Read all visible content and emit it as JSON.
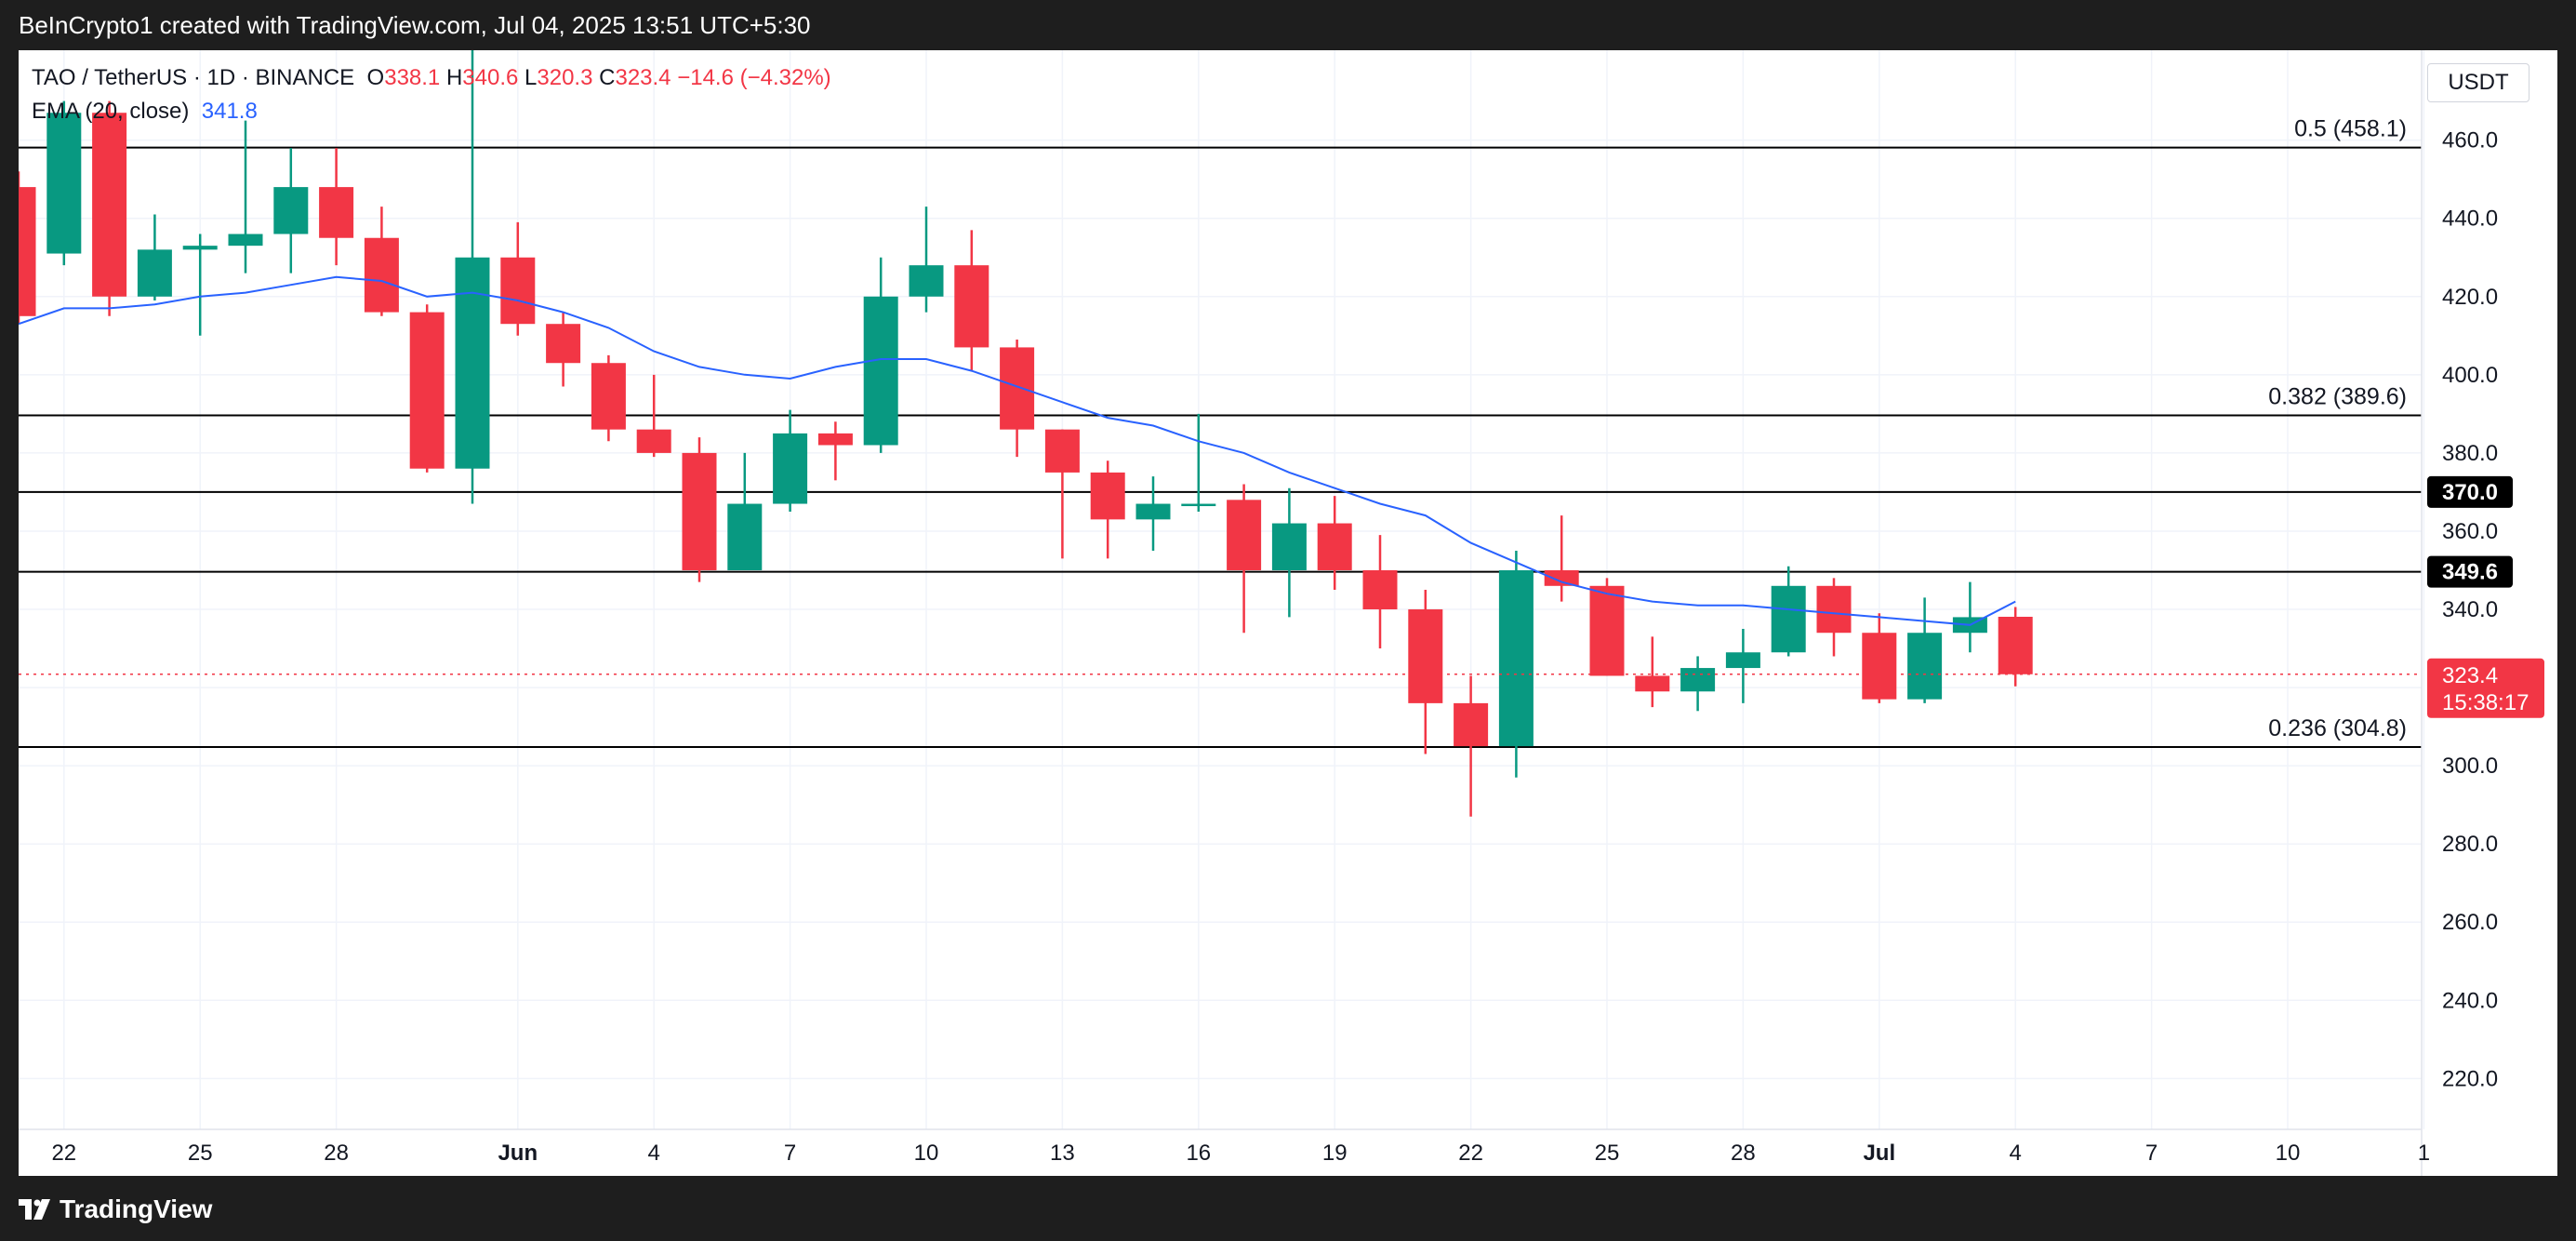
{
  "header": {
    "caption": "BeInCrypto1 created with TradingView.com, Jul 04, 2025 13:51 UTC+5:30"
  },
  "legend": {
    "symbol": "TAO / TetherUS · 1D · BINANCE",
    "o_label": "O",
    "o_value": "338.1",
    "h_label": "H",
    "h_value": "340.6",
    "l_label": "L",
    "l_value": "320.3",
    "c_label": "C",
    "c_value": "323.4",
    "change": "−14.6 (−4.32%)",
    "ema_label": "EMA (20, close)",
    "ema_value": "341.8"
  },
  "currency": "USDT",
  "footer": {
    "brand": "TradingView"
  },
  "colors": {
    "up": "#089981",
    "down": "#f23645",
    "ema": "#2962ff",
    "price_tag": "#f23645",
    "level_tag": "#000000"
  },
  "chart_data": {
    "type": "candlestick",
    "title": "TAO / TetherUS · 1D · BINANCE",
    "ylim": [
      207,
      483
    ],
    "y_ticks": [
      220,
      240,
      260,
      280,
      300,
      320,
      340,
      360,
      380,
      400,
      420,
      440,
      460
    ],
    "y_tick_labels": [
      "220.0",
      "240.0",
      "260.0",
      "280.0",
      "300.0",
      "320.0",
      "340.0",
      "360.0",
      "380.0",
      "400.0",
      "420.0",
      "440.0",
      "460.0"
    ],
    "x_ticks": [
      {
        "idx": 1,
        "label": "22",
        "bold": false
      },
      {
        "idx": 4,
        "label": "25",
        "bold": false
      },
      {
        "idx": 7,
        "label": "28",
        "bold": false
      },
      {
        "idx": 11,
        "label": "Jun",
        "bold": true
      },
      {
        "idx": 14,
        "label": "4",
        "bold": false
      },
      {
        "idx": 17,
        "label": "7",
        "bold": false
      },
      {
        "idx": 20,
        "label": "10",
        "bold": false
      },
      {
        "idx": 23,
        "label": "13",
        "bold": false
      },
      {
        "idx": 26,
        "label": "16",
        "bold": false
      },
      {
        "idx": 29,
        "label": "19",
        "bold": false
      },
      {
        "idx": 32,
        "label": "22",
        "bold": false
      },
      {
        "idx": 35,
        "label": "25",
        "bold": false
      },
      {
        "idx": 38,
        "label": "28",
        "bold": false
      },
      {
        "idx": 41,
        "label": "Jul",
        "bold": true
      },
      {
        "idx": 44,
        "label": "4",
        "bold": false
      },
      {
        "idx": 47,
        "label": "7",
        "bold": false
      },
      {
        "idx": 50,
        "label": "10",
        "bold": false
      },
      {
        "idx": 53,
        "label": "1",
        "bold": false
      }
    ],
    "candles": [
      [
        448,
        452,
        413,
        415
      ],
      [
        431,
        470,
        428,
        467
      ],
      [
        467,
        470,
        415,
        420
      ],
      [
        420,
        441,
        419,
        432
      ],
      [
        432,
        436,
        410,
        433
      ],
      [
        433,
        465,
        426,
        436
      ],
      [
        436,
        458,
        426,
        448
      ],
      [
        448,
        458,
        428,
        435
      ],
      [
        435,
        443,
        415,
        416
      ],
      [
        416,
        418,
        375,
        376
      ],
      [
        376,
        498,
        367,
        430
      ],
      [
        430,
        439,
        410,
        413
      ],
      [
        413,
        416,
        397,
        403
      ],
      [
        403,
        405,
        383,
        386
      ],
      [
        386,
        400,
        379,
        380
      ],
      [
        380,
        384,
        347,
        350
      ],
      [
        350,
        380,
        350,
        367
      ],
      [
        367,
        391,
        365,
        385
      ],
      [
        385,
        388,
        373,
        382
      ],
      [
        382,
        430,
        380,
        420
      ],
      [
        420,
        443,
        416,
        428
      ],
      [
        428,
        437,
        401,
        407
      ],
      [
        407,
        409,
        379,
        386
      ],
      [
        386,
        386,
        353,
        375
      ],
      [
        375,
        378,
        353,
        363
      ],
      [
        363,
        374,
        355,
        367
      ],
      [
        367,
        390,
        365,
        367
      ],
      [
        368,
        372,
        334,
        350
      ],
      [
        350,
        371,
        338,
        362
      ],
      [
        362,
        369,
        345,
        350
      ],
      [
        350,
        359,
        330,
        340
      ],
      [
        340,
        345,
        303,
        316
      ],
      [
        316,
        323,
        287,
        305
      ],
      [
        305,
        355,
        297,
        350
      ],
      [
        350,
        364,
        342,
        346
      ],
      [
        346,
        348,
        323,
        323
      ],
      [
        323,
        333,
        315,
        319
      ],
      [
        319,
        328,
        314,
        325
      ],
      [
        325,
        335,
        316,
        329
      ],
      [
        329,
        351,
        328,
        346
      ],
      [
        346,
        348,
        328,
        334
      ],
      [
        334,
        339,
        316,
        317
      ],
      [
        317,
        343,
        316,
        334
      ],
      [
        334,
        347,
        329,
        338
      ],
      [
        338.1,
        340.6,
        320.3,
        323.4
      ]
    ],
    "ema": {
      "name": "EMA (20, close)",
      "values": [
        413,
        417,
        417,
        418,
        420,
        421,
        423,
        425,
        424,
        420,
        421,
        419,
        416,
        412,
        406,
        402,
        400,
        399,
        402,
        404,
        404,
        401,
        397,
        393,
        389,
        387,
        383,
        380,
        375,
        371,
        367,
        364,
        357,
        352,
        347,
        344,
        342,
        341,
        341,
        340,
        339,
        338,
        337,
        336,
        342
      ]
    },
    "levels": [
      {
        "value": 458.1,
        "label": "0.5 (458.1)",
        "tag": null
      },
      {
        "value": 389.6,
        "label": "0.382 (389.6)",
        "tag": null
      },
      {
        "value": 370.0,
        "label": "",
        "tag": "370.0"
      },
      {
        "value": 349.6,
        "label": "",
        "tag": "349.6"
      },
      {
        "value": 304.8,
        "label": "0.236 (304.8)",
        "tag": null
      }
    ],
    "last_price": {
      "value": 323.4,
      "label": "323.4",
      "countdown": "15:38:17"
    }
  }
}
